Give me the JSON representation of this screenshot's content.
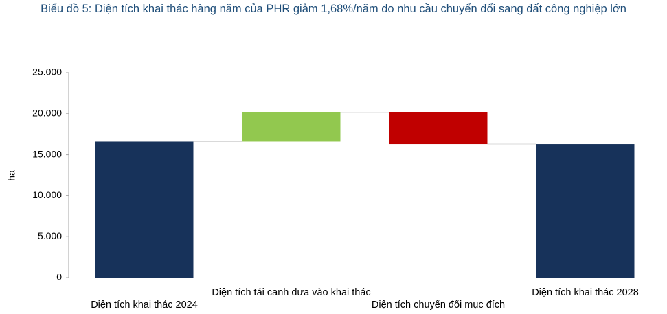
{
  "chart_data": {
    "type": "waterfall",
    "title": "Biểu đồ 5: Diện tích khai thác hàng năm của PHR giảm 1,68%/năm do nhu cầu chuyển đổi sang đất công nghiệp lớn",
    "y_label": "ha",
    "categories": [
      "Diện tích khai thác 2024",
      "Diện tích tái canh đưa vào khai thác",
      "Diện tích chuyển đổi mục đích",
      "Diện tích khai thác 2028"
    ],
    "values": [
      16600,
      3550,
      -3850,
      16300
    ],
    "kinds": [
      "total",
      "delta",
      "delta",
      "total"
    ],
    "colors": [
      "#17325a",
      "#92c84f",
      "#c00000",
      "#17325a"
    ],
    "ylim": [
      0,
      25000
    ],
    "yticks": [
      0,
      {
        "value": 5000,
        "label": "5.000"
      },
      {
        "value": 10000,
        "label": "10.000"
      },
      {
        "value": 15000,
        "label": "15.000"
      },
      {
        "value": 20000,
        "label": "20.000"
      },
      {
        "value": 25000,
        "label": "25.000"
      }
    ]
  }
}
